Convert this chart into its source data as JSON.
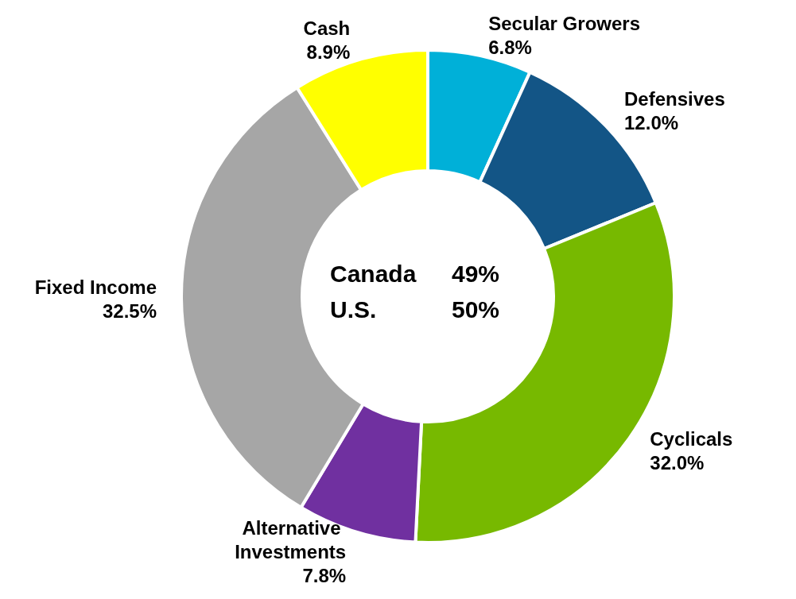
{
  "chart_data": {
    "type": "donut",
    "categories": [
      "Secular Growers",
      "Defensives",
      "Cyclicals",
      "Alternative Investments",
      "Fixed Income",
      "Cash"
    ],
    "values": [
      6.8,
      12.0,
      32.0,
      7.8,
      32.5,
      8.9
    ],
    "value_labels": [
      "6.8%",
      "12.0%",
      "32.0%",
      "7.8%",
      "32.5%",
      "8.9%"
    ],
    "colors": [
      "#00b0d8",
      "#135586",
      "#77b900",
      "#7030a0",
      "#a6a6a6",
      "#ffff00"
    ],
    "annotations": [
      "Canada",
      "49%",
      "U.S.",
      "50%"
    ],
    "legend": false
  }
}
